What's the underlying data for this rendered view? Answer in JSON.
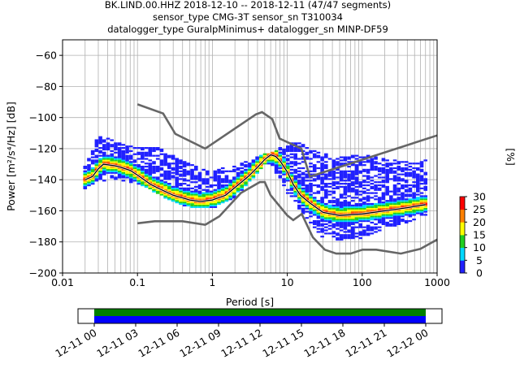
{
  "title": {
    "line1": "BK.LIND.00.HHZ   2018-12-10 -- 2018-12-11  (47/47 segments)",
    "line2": "sensor_type CMG-3T sensor_sn T310034",
    "line3": "datalogger_type GuralpMinimus+ datalogger_sn MINP-DF59"
  },
  "colors": {
    "nlnm_nhnm": "#666666",
    "mode_line": "#000000",
    "timeline_top": "#008000",
    "timeline_bottom": "#0000ff",
    "grid": "#b0b0b0"
  },
  "chart_data": [
    {
      "type": "heatmap",
      "xlabel": "Period [s]",
      "ylabel": "Power [m²/s⁴/Hz] [dB]",
      "xscale": "log",
      "xlim": [
        0.01,
        1000
      ],
      "ylim": [
        -200,
        -50
      ],
      "xticks": [
        0.01,
        0.1,
        1,
        10,
        100,
        1000
      ],
      "xtick_labels": [
        "0.01",
        "0.1",
        "1",
        "10",
        "100",
        "1000"
      ],
      "yticks": [
        -200,
        -180,
        -160,
        -140,
        -120,
        -100,
        -80,
        -60
      ],
      "ytick_labels": [
        "−200",
        "−180",
        "−160",
        "−140",
        "−120",
        "−100",
        "−80",
        "−60"
      ],
      "grid": true,
      "colorbar": {
        "label": "[%]",
        "min": 0,
        "max": 30,
        "ticks": [
          0,
          5,
          10,
          15,
          20,
          25,
          30
        ],
        "colormap": "pqlx"
      },
      "series": [
        {
          "kind": "noise-model",
          "x": [
            0.1,
            0.22,
            0.32,
            0.8,
            3.8,
            4.6,
            6.3,
            7.9,
            15.4,
            20,
            1000
          ],
          "y": [
            -91.5,
            -97.4,
            -110.5,
            -120,
            -98,
            -96.5,
            -101,
            -113.5,
            -120,
            -138,
            -111.5
          ]
        },
        {
          "kind": "noise-model",
          "x": [
            0.1,
            0.17,
            0.4,
            0.8,
            1.24,
            2.4,
            4.3,
            5,
            6,
            10,
            12,
            15.6,
            21.9,
            31.6,
            45,
            70,
            101,
            154,
            328,
            600,
            1000
          ],
          "y": [
            -168,
            -166.7,
            -166.7,
            -169,
            -163.5,
            -148.5,
            -141.5,
            -141.5,
            -150,
            -163,
            -166,
            -162,
            -177,
            -185,
            -187.5,
            -187.5,
            -185,
            -185,
            -187.5,
            -184.5,
            -178.5
          ]
        },
        {
          "kind": "mode",
          "x": [
            0.02,
            0.025,
            0.03,
            0.035,
            0.05,
            0.06,
            0.08,
            0.1,
            0.15,
            0.2,
            0.3,
            0.5,
            0.7,
            1,
            1.5,
            2,
            3,
            4,
            5,
            6,
            7,
            8,
            10,
            12,
            15,
            20,
            30,
            50,
            100,
            200,
            400,
            700
          ],
          "y": [
            -140,
            -138,
            -133,
            -130,
            -131,
            -132,
            -134,
            -137,
            -143,
            -146,
            -150,
            -153,
            -154,
            -153,
            -150,
            -145,
            -138,
            -132,
            -127,
            -124,
            -125,
            -128,
            -135,
            -143,
            -150,
            -155,
            -161,
            -163,
            -162,
            -160,
            -158,
            -156
          ]
        }
      ],
      "spread": {
        "x": [
          0.02,
          0.03,
          0.05,
          0.1,
          0.2,
          0.3,
          0.5,
          1,
          2,
          3,
          5,
          6,
          8,
          10,
          15,
          20,
          30,
          50,
          100,
          200,
          400,
          700
        ],
        "upper": [
          -132,
          -112,
          -115,
          -120,
          -120,
          -125,
          -130,
          -135,
          -130,
          -128,
          -124,
          -123,
          -120,
          -115,
          -117,
          -120,
          -123,
          -126,
          -124,
          -127,
          -129,
          -128
        ],
        "lower": [
          -146,
          -142,
          -140,
          -143,
          -150,
          -155,
          -158,
          -159,
          -152,
          -143,
          -131,
          -130,
          -140,
          -150,
          -160,
          -168,
          -178,
          -180,
          -178,
          -172,
          -168,
          -164
        ]
      }
    },
    {
      "type": "timeline",
      "xtick_labels": [
        "12-11 00",
        "12-11 03",
        "12-11 06",
        "12-11 09",
        "12-11 12",
        "12-11 15",
        "12-11 18",
        "12-11 21",
        "12-12 00"
      ],
      "segments": [
        {
          "name": "data",
          "start_hour": 0,
          "end_hour": 24
        }
      ]
    }
  ]
}
